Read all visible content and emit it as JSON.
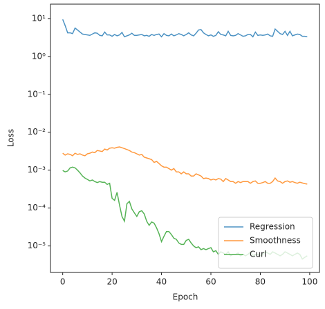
{
  "chart_data": {
    "type": "line",
    "x_label": "Epoch",
    "y_label": "Loss",
    "log_y": true,
    "legend": "lower right",
    "x": [
      0,
      1,
      2,
      3,
      4,
      5,
      6,
      7,
      8,
      9,
      10,
      11,
      12,
      13,
      14,
      15,
      16,
      17,
      18,
      19,
      20,
      21,
      22,
      23,
      24,
      25,
      26,
      27,
      28,
      29,
      30,
      31,
      32,
      33,
      34,
      35,
      36,
      37,
      38,
      39,
      40,
      41,
      42,
      43,
      44,
      45,
      46,
      47,
      48,
      49,
      50,
      51,
      52,
      53,
      54,
      55,
      56,
      57,
      58,
      59,
      60,
      61,
      62,
      63,
      64,
      65,
      66,
      67,
      68,
      69,
      70,
      71,
      72,
      73,
      74,
      75,
      76,
      77,
      78,
      79,
      80,
      81,
      82,
      83,
      84,
      85,
      86,
      87,
      88,
      89,
      90,
      91,
      92,
      93,
      94,
      95,
      96,
      97,
      98,
      99
    ],
    "xlim": [
      -4.95,
      103.95
    ],
    "xticks": [
      0,
      20,
      40,
      60,
      80,
      100
    ],
    "ylim": [
      2e-06,
      24
    ],
    "yticks": [
      {
        "value": 10,
        "label": "10¹"
      },
      {
        "value": 1,
        "label": "10⁰"
      },
      {
        "value": 0.1,
        "label": "10⁻¹"
      },
      {
        "value": 0.01,
        "label": "10⁻²"
      },
      {
        "value": 0.001,
        "label": "10⁻³"
      },
      {
        "value": 0.0001,
        "label": "10⁻⁴"
      },
      {
        "value": 1e-05,
        "label": "10⁻⁵"
      }
    ],
    "series": [
      {
        "name": "Regression",
        "color": "#1f77b4",
        "values": [
          9.5,
          6.5,
          4.2,
          4.2,
          4.0,
          5.6,
          5.0,
          4.4,
          3.9,
          3.8,
          3.7,
          3.6,
          3.9,
          4.2,
          4.1,
          3.6,
          3.5,
          4.4,
          3.7,
          3.7,
          3.4,
          3.8,
          3.5,
          3.7,
          4.3,
          3.3,
          3.5,
          3.7,
          4.1,
          3.6,
          3.6,
          3.7,
          3.8,
          3.5,
          3.6,
          3.4,
          3.8,
          3.6,
          3.8,
          3.9,
          3.3,
          4.0,
          3.6,
          3.5,
          3.9,
          3.5,
          3.7,
          4.0,
          3.8,
          3.5,
          3.8,
          4.2,
          3.7,
          3.5,
          4.1,
          5.0,
          5.1,
          4.2,
          3.8,
          3.5,
          3.7,
          3.4,
          3.6,
          4.5,
          3.8,
          3.7,
          3.5,
          4.6,
          3.6,
          3.5,
          3.6,
          4.0,
          3.7,
          3.4,
          3.5,
          3.8,
          3.8,
          3.3,
          4.4,
          3.6,
          3.7,
          3.6,
          3.7,
          3.9,
          3.5,
          3.4,
          5.3,
          4.6,
          4.0,
          3.8,
          4.6,
          3.6,
          4.6,
          3.5,
          3.7,
          3.9,
          3.8,
          3.4,
          3.4,
          3.3
        ]
      },
      {
        "name": "Smoothness",
        "color": "#ff7f0e",
        "values": [
          0.0028,
          0.0025,
          0.0027,
          0.0026,
          0.0024,
          0.0028,
          0.0026,
          0.0027,
          0.0025,
          0.0024,
          0.0027,
          0.0028,
          0.003,
          0.0029,
          0.0033,
          0.0032,
          0.0031,
          0.0036,
          0.0034,
          0.0038,
          0.0039,
          0.0038,
          0.004,
          0.0041,
          0.0039,
          0.0037,
          0.0035,
          0.0033,
          0.003,
          0.0029,
          0.0027,
          0.0025,
          0.0026,
          0.0022,
          0.0021,
          0.002,
          0.0019,
          0.0016,
          0.0017,
          0.0015,
          0.0013,
          0.0012,
          0.0012,
          0.0011,
          0.001,
          0.0011,
          0.0009,
          0.0009,
          0.0008,
          0.0009,
          0.0008,
          0.0008,
          0.0007,
          0.0007,
          0.0008,
          0.00075,
          0.0007,
          0.0006,
          0.00062,
          0.0006,
          0.00055,
          0.00058,
          0.00055,
          0.0006,
          0.00058,
          0.0005,
          0.0006,
          0.00055,
          0.0005,
          0.0005,
          0.00045,
          0.0005,
          0.00047,
          0.0005,
          0.0005,
          0.0005,
          0.00045,
          0.0005,
          0.00052,
          0.00045,
          0.00045,
          0.00047,
          0.0005,
          0.00045,
          0.00045,
          0.0005,
          0.00062,
          0.00052,
          0.0005,
          0.00045,
          0.0005,
          0.00052,
          0.00048,
          0.0005,
          0.00047,
          0.00045,
          0.00048,
          0.00046,
          0.00044,
          0.00043
        ]
      },
      {
        "name": "Curl",
        "color": "#2ca02c",
        "values": [
          0.00098,
          0.0009,
          0.00095,
          0.00115,
          0.0012,
          0.00115,
          0.001,
          0.00085,
          0.0007,
          0.00062,
          0.00057,
          0.00052,
          0.00055,
          0.0005,
          0.00047,
          0.0005,
          0.00048,
          0.00048,
          0.00042,
          0.00045,
          0.00018,
          0.00016,
          0.00026,
          0.00012,
          6e-05,
          4.5e-05,
          0.00013,
          0.00015,
          9.5e-05,
          7.5e-05,
          6e-05,
          8e-05,
          8.5e-05,
          7e-05,
          4.5e-05,
          3.5e-05,
          4.3e-05,
          4e-05,
          3e-05,
          2.1e-05,
          1.3e-05,
          1.8e-05,
          2.4e-05,
          2.4e-05,
          2e-05,
          1.6e-05,
          1.5e-05,
          1.2e-05,
          1.1e-05,
          1.1e-05,
          1.4e-05,
          1.5e-05,
          1.2e-05,
          1e-05,
          9e-06,
          9.5e-06,
          8e-06,
          8.5e-06,
          8e-06,
          8.5e-06,
          9e-06,
          7e-06,
          7.5e-06,
          6e-06,
          7e-06,
          6.5e-06,
          6e-06,
          7e-06,
          5.5e-06,
          6e-06,
          6e-06,
          6.5e-06,
          5.5e-06,
          6e-06,
          5.5e-06,
          6e-06,
          7e-06,
          5.5e-06,
          6e-06,
          6e-06,
          5.5e-06,
          6e-06,
          7e-06,
          6.5e-06,
          6e-06,
          7e-06,
          6.5e-06,
          6e-06,
          5.5e-06,
          6e-06,
          7e-06,
          6.5e-06,
          6e-06,
          5.5e-06,
          6e-06,
          6.5e-06,
          6e-06,
          4.5e-06,
          5e-06,
          5.5e-06
        ]
      }
    ]
  }
}
